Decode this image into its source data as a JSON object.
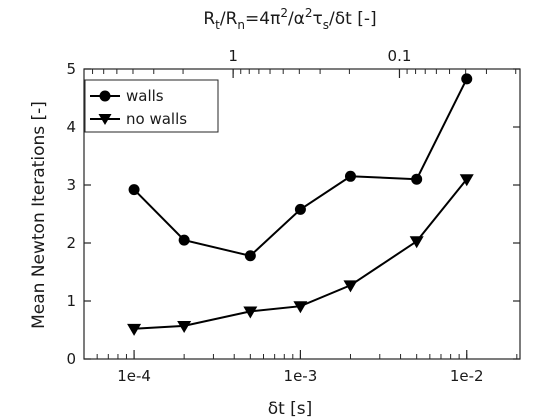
{
  "chart_data": {
    "type": "line",
    "x_scale": "log",
    "x": [
      0.0001,
      0.0002,
      0.0005,
      0.001,
      0.002,
      0.005,
      0.01
    ],
    "series": [
      {
        "name": "walls",
        "marker": "circle",
        "values": [
          2.92,
          2.05,
          1.78,
          2.58,
          3.15,
          3.1,
          4.83
        ]
      },
      {
        "name": "no walls",
        "marker": "triangle-down",
        "values": [
          0.52,
          0.57,
          0.82,
          0.91,
          1.27,
          2.03,
          3.1
        ]
      }
    ],
    "xlabel": "δt [s]",
    "ylabel": "Mean Newton Iterations [-]",
    "top_xlabel": {
      "lhs": "R",
      "lhs_sub": "t",
      "slash": "/",
      "rhs": "R",
      "rhs_sub": "n",
      "eq": "=4π",
      "pi_sup": "2",
      "div": "/α",
      "alpha_sup": "2",
      "tau": "τ",
      "tau_sub": "s",
      "tail": "/δt [-]"
    },
    "xlim": [
      5e-05,
      0.0209
    ],
    "ylim": [
      0,
      5
    ],
    "x_ticks": [
      {
        "value": 0.0001,
        "label": "1e-4"
      },
      {
        "value": 0.001,
        "label": "1e-3"
      },
      {
        "value": 0.01,
        "label": "1e-2"
      }
    ],
    "y_ticks": [
      0,
      1,
      2,
      3,
      4,
      5
    ],
    "top_ticks": [
      {
        "x_at": 0.000394,
        "label": "1"
      },
      {
        "x_at": 0.00394,
        "label": "0.1"
      }
    ],
    "legend_position": "top-left",
    "grid": false,
    "colors": {
      "line": "#000000",
      "axes": "#262626",
      "text": "#1a1a1a"
    }
  }
}
